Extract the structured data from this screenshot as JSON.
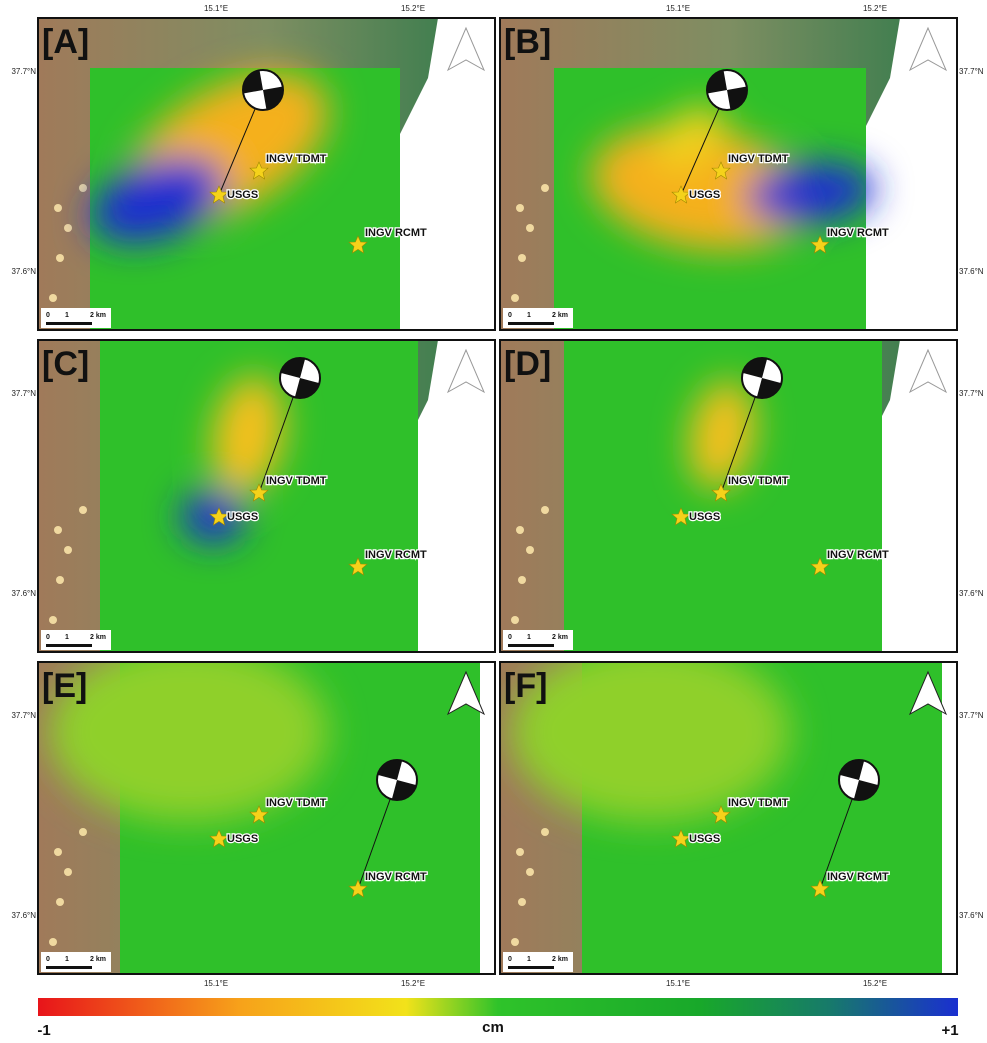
{
  "panels": [
    {
      "label": "[A]"
    },
    {
      "label": "[B]"
    },
    {
      "label": "[C]"
    },
    {
      "label": "[D]"
    },
    {
      "label": "[E]"
    },
    {
      "label": "[F]"
    }
  ],
  "stations": [
    "INGV TDMT",
    "USGS",
    "INGV RCMT"
  ],
  "longitude_ticks": [
    "15.1°E",
    "15.2°E"
  ],
  "latitude_ticks": [
    "37.7°N",
    "37.6°N"
  ],
  "scale_bar": [
    "0",
    "1",
    "2 km"
  ],
  "colorbar": {
    "min_label": "-1",
    "unit": "cm",
    "max_label": "+1"
  }
}
